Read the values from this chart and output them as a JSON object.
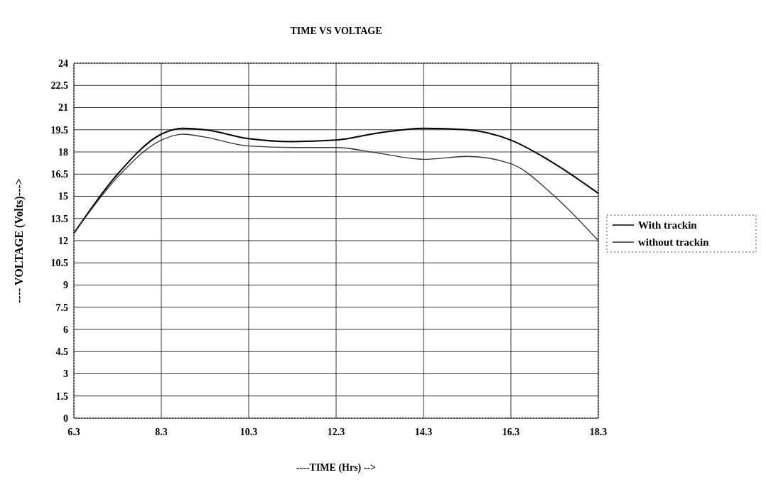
{
  "chart_data": {
    "type": "line",
    "title": "TIME VS VOLTAGE",
    "xlabel": "----TIME (Hrs) -->",
    "ylabel": "---- VOLTAGE (Volts)--->",
    "x": [
      6.3,
      7.3,
      8.3,
      8.8,
      9.3,
      10.3,
      11.3,
      12.3,
      13.3,
      14.3,
      15.3,
      16.3,
      17.3,
      18.3
    ],
    "series": [
      {
        "name": "With trackin",
        "color": "#000000",
        "values": [
          12.5,
          16.5,
          19.2,
          19.6,
          19.5,
          18.9,
          18.7,
          18.8,
          19.3,
          19.6,
          19.5,
          18.8,
          17.2,
          15.2
        ]
      },
      {
        "name": "without trackin",
        "color": "#333333",
        "values": [
          12.5,
          16.3,
          18.8,
          19.2,
          19.0,
          18.4,
          18.3,
          18.3,
          17.9,
          17.5,
          17.7,
          17.2,
          15.0,
          12.0
        ]
      }
    ],
    "xlim": [
      6.3,
      18.3
    ],
    "xticks": [
      6.3,
      8.3,
      10.3,
      12.3,
      14.3,
      16.3,
      18.3
    ],
    "ylim": [
      0,
      24
    ],
    "yticks": [
      0,
      1.5,
      3,
      4.5,
      6,
      7.5,
      9,
      10.5,
      12,
      13.5,
      15,
      16.5,
      18,
      19.5,
      21,
      22.5,
      24
    ],
    "grid": true,
    "legend": "right",
    "marker": "none",
    "line_style": "solid"
  }
}
